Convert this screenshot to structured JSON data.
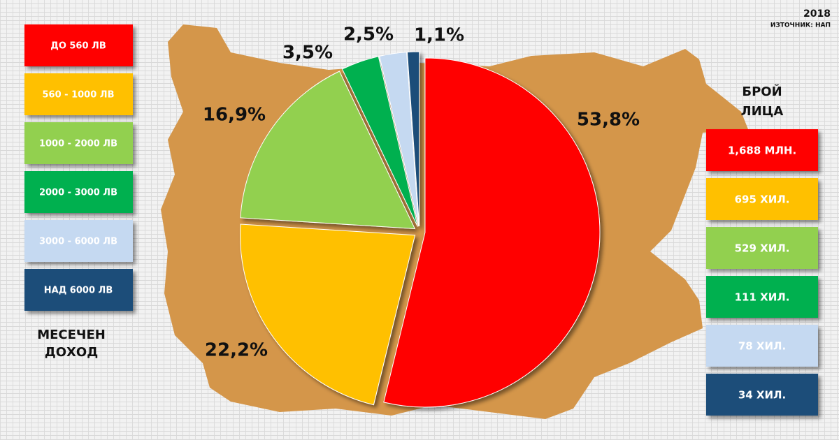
{
  "chart_data": {
    "type": "pie",
    "year": "2018",
    "source": "ИЗТОЧНИК: НАП",
    "legend_title": [
      "МЕСЕЧЕН",
      "ДОХОД"
    ],
    "counts_title": [
      "БРОЙ",
      "ЛИЦА"
    ],
    "categories": [
      "ДО 560 ЛВ",
      "560 - 1000 ЛВ",
      "1000 - 2000 ЛВ",
      "2000 - 3000 ЛВ",
      "3000 - 6000 ЛВ",
      "НАД 6000 ЛВ"
    ],
    "values": [
      53.8,
      22.2,
      16.9,
      3.5,
      2.5,
      1.1
    ],
    "value_labels": [
      "53,8%",
      "22,2%",
      "16,9%",
      "3,5%",
      "2,5%",
      "1,1%"
    ],
    "counts": [
      "1,688 МЛН.",
      "695 ХИЛ.",
      "529 ХИЛ.",
      "111 ХИЛ.",
      "78 ХИЛ.",
      "34 ХИЛ."
    ],
    "colors": [
      "#ff0000",
      "#ffc000",
      "#92d050",
      "#00b050",
      "#c5d9f1",
      "#1f4e79"
    ]
  }
}
